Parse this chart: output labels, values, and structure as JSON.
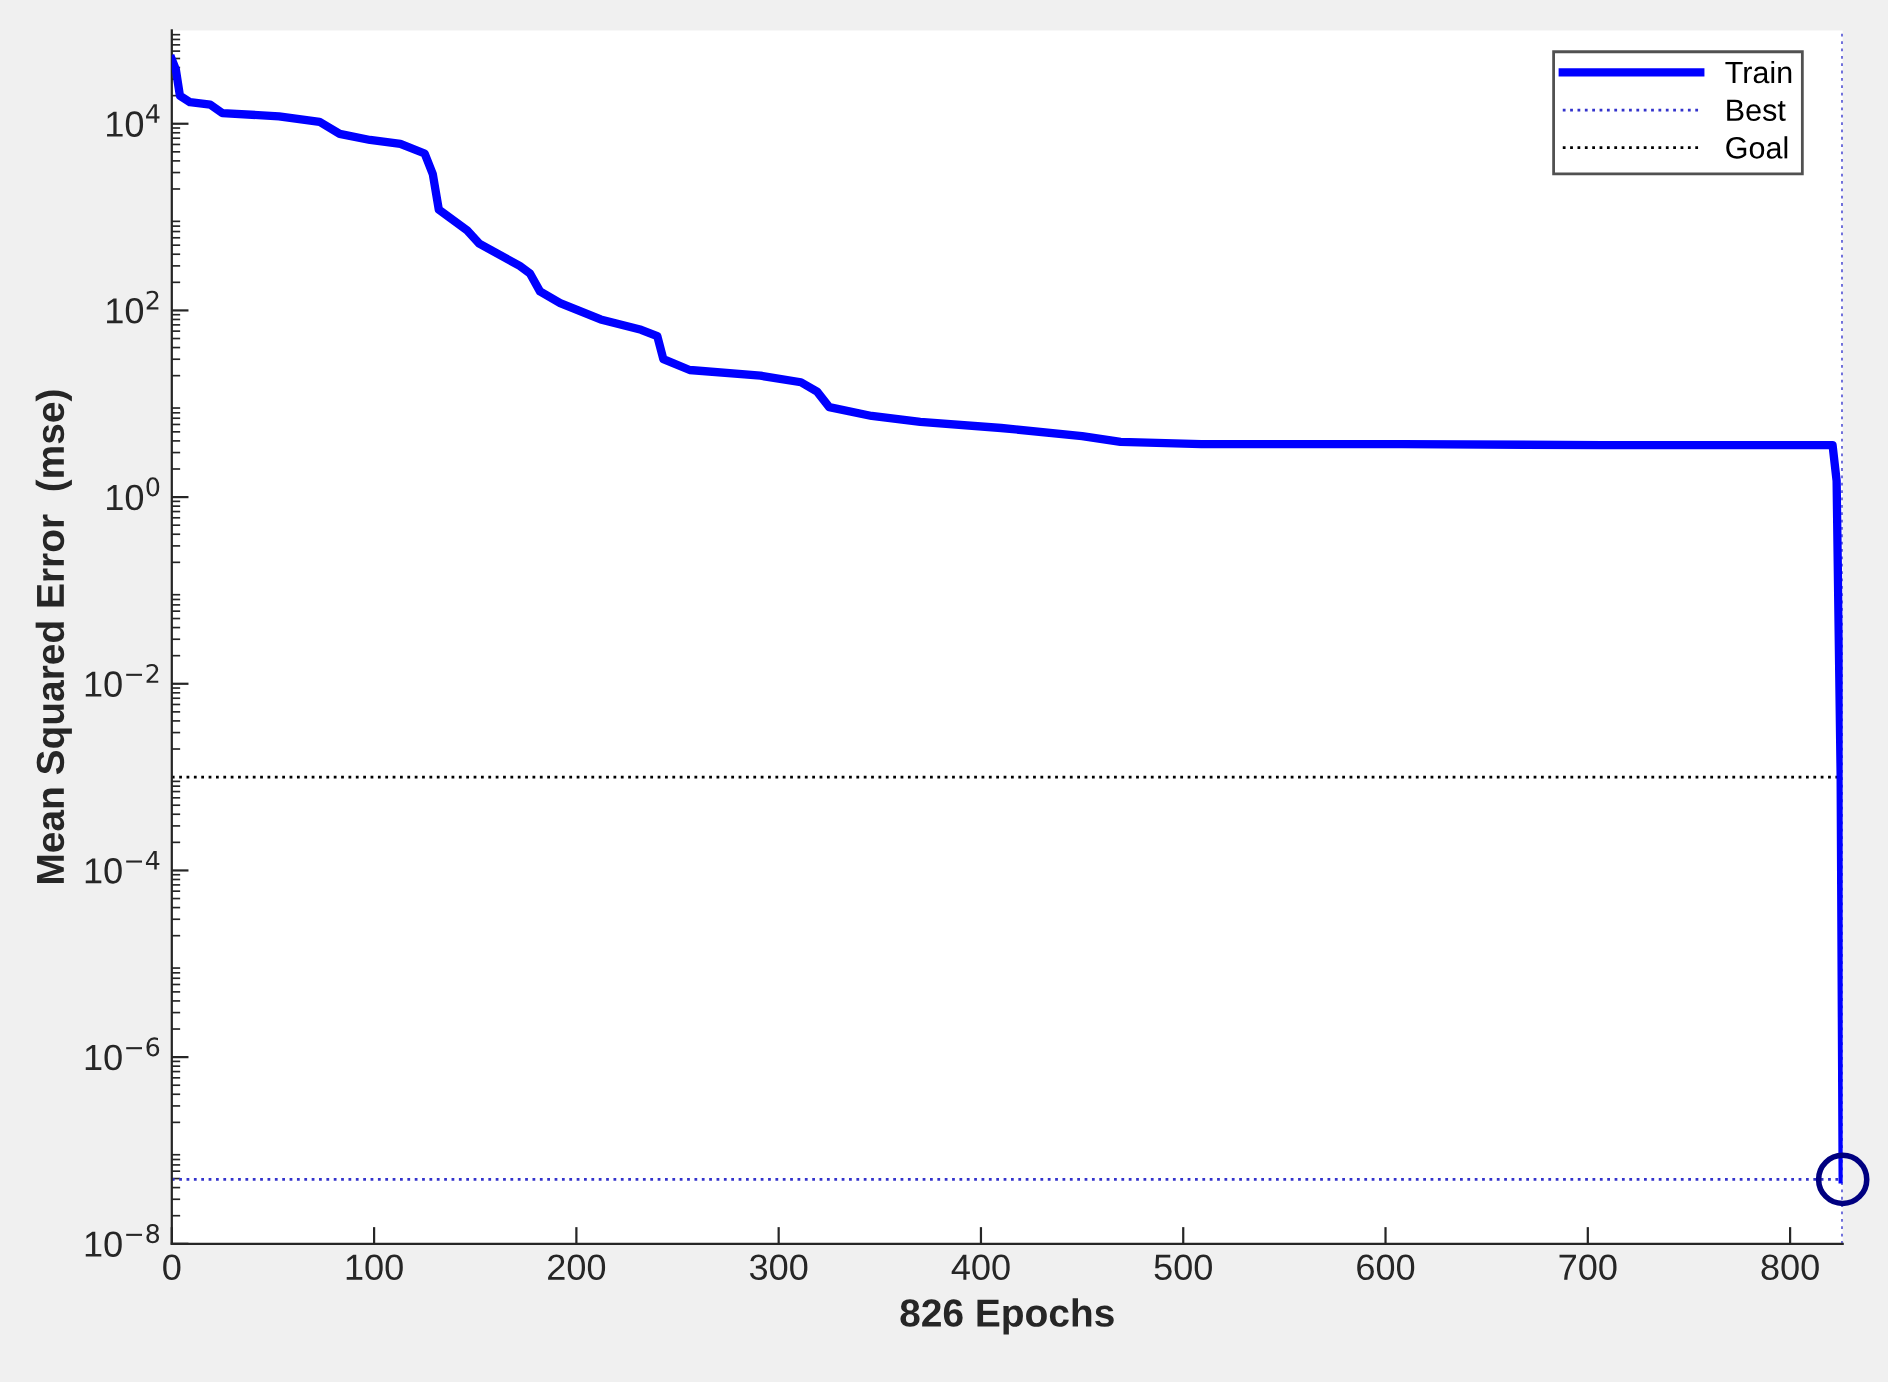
{
  "chart_data": {
    "type": "line",
    "xlabel": "826 Epochs",
    "ylabel": "Mean Squared Error  (mse)",
    "log": "y",
    "xlim": [
      0,
      826
    ],
    "xticks": [
      0,
      100,
      200,
      300,
      400,
      500,
      600,
      700,
      800
    ],
    "ylim": [
      1e-08,
      100000
    ],
    "yticks": [
      {
        "value": 1e-08,
        "label": "10$^{−8}$"
      },
      {
        "value": 1e-06,
        "label": "10$^{−6}$"
      },
      {
        "value": 0.0001,
        "label": "10$^{−4}$"
      },
      {
        "value": 0.01,
        "label": "10$^{−2}$"
      },
      {
        "value": 1,
        "label": "10$^{0}$"
      },
      {
        "value": 100,
        "label": "10$^{2}$"
      },
      {
        "value": 10000,
        "label": "10$^{4}$"
      }
    ],
    "grid": false,
    "legend": "top right",
    "series": [
      {
        "name": "Train",
        "color": "#0000ff",
        "line_style": "solid",
        "marker": "none",
        "x": [
          0,
          2,
          4,
          9,
          19,
          25,
          53,
          73,
          83,
          98,
          113,
          125,
          129,
          132,
          146,
          152,
          172,
          177,
          182,
          192,
          212,
          232,
          240,
          243,
          256,
          291,
          311,
          319,
          325,
          346,
          370,
          410,
          450,
          469,
          509,
          608,
          707,
          821,
          823,
          825,
          826
        ],
        "values": [
          49000,
          38000,
          20000,
          17000,
          16000,
          13000,
          12000,
          10500,
          7800,
          6700,
          6100,
          4800,
          2900,
          1200,
          720,
          520,
          300,
          250,
          160,
          120,
          80,
          62,
          53,
          30,
          23,
          20,
          17,
          13.5,
          9.2,
          7.4,
          6.4,
          5.5,
          4.5,
          3.9,
          3.7,
          3.7,
          3.6,
          3.6,
          1.5,
          0.001,
          4.9e-08
        ]
      },
      {
        "type": "scatter",
        "color": "#000080",
        "marker": "circle",
        "x": [
          826
        ],
        "values": [
          4.9e-08
        ]
      }
    ],
    "ref_lines": [
      {
        "axis": "y",
        "value": 4.9e-08,
        "label": "Best",
        "color": "#3333cc",
        "line_style": "dotted"
      },
      {
        "axis": "x",
        "value": 826,
        "color": "#3333cc",
        "line_style": "dotted"
      },
      {
        "axis": "y",
        "value": 0.001,
        "label": "Goal",
        "color": "#000000",
        "line_style": "dotted"
      }
    ]
  }
}
